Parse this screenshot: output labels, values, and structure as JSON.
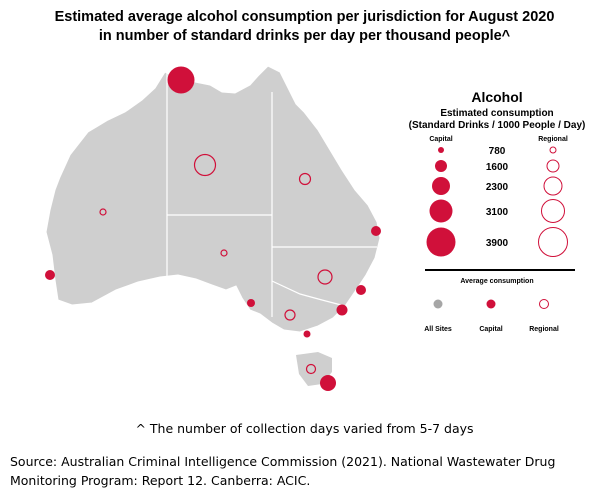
{
  "title_line1": "Estimated average alcohol consumption per jurisdiction for August 2020",
  "title_line2": "in number of standard drinks per day per thousand people^",
  "legend": {
    "heading": "Alcohol",
    "sub1": "Estimated consumption",
    "sub2": "(Standard Drinks / 1000 People / Day)",
    "capital_label": "Capital",
    "regional_label": "Regional",
    "sizes": [
      "780",
      "1600",
      "2300",
      "3100",
      "3900"
    ],
    "avg_heading": "Average consumption",
    "all_sites_label": "All Sites",
    "capital_dot_label": "Capital",
    "regional_dot_label": "Regional"
  },
  "colors": {
    "land": "#cfcfcf",
    "capital": "#d0103a",
    "regional_stroke": "#d0103a",
    "all_sites": "#a6a6a6"
  },
  "footnote": "^ The number of collection days varied from 5-7 days",
  "source": "Source: Australian Criminal Intelligence Commission (2021). National Wastewater Drug Monitoring Program: Report 12. Canberra: ACIC."
}
